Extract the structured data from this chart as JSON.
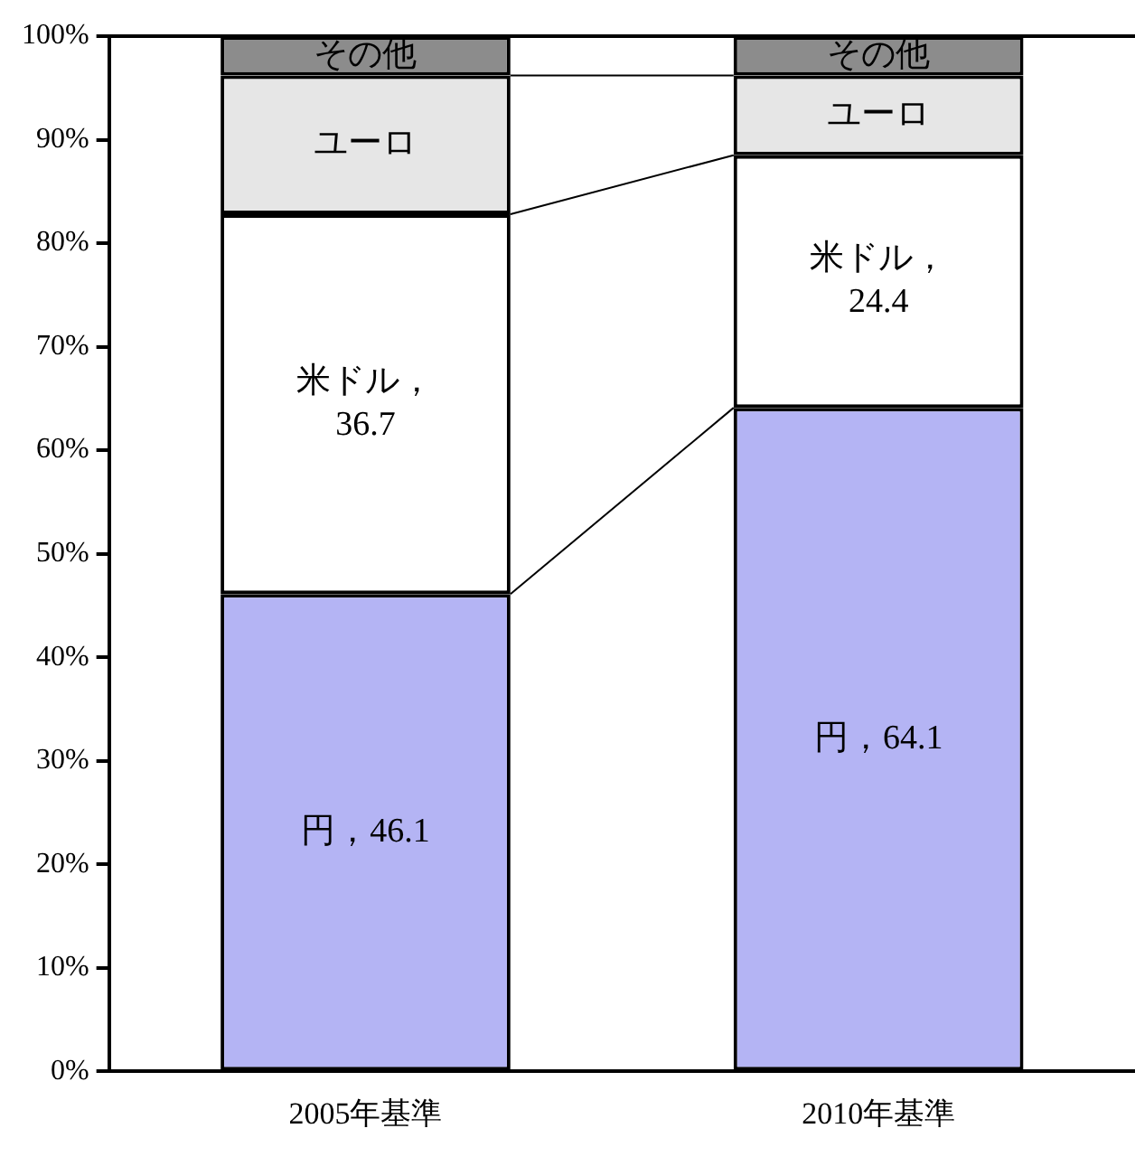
{
  "chart_data": {
    "type": "bar",
    "stacked": true,
    "categories": [
      "2005年基準",
      "2010年基準"
    ],
    "series": [
      {
        "name": "円，",
        "color": "#b4b4f4",
        "values": [
          46.1,
          64.1
        ],
        "value_labels": [
          "46.1",
          "64.1"
        ]
      },
      {
        "name": "米ドル，",
        "color": "#ffffff",
        "values": [
          36.7,
          24.4
        ],
        "value_labels": [
          "36.7",
          "24.4"
        ]
      },
      {
        "name": "ユーロ",
        "color": "#e6e6e6",
        "values": [
          13.4,
          7.7
        ]
      },
      {
        "name": "その他",
        "color": "#8c8c8c",
        "values": [
          3.8,
          3.8
        ]
      }
    ],
    "ylim": [
      0,
      100
    ],
    "yticks": [
      {
        "value": 0,
        "label": "0%"
      },
      {
        "value": 10,
        "label": "10%"
      },
      {
        "value": 20,
        "label": "20%"
      },
      {
        "value": 30,
        "label": "30%"
      },
      {
        "value": 40,
        "label": "40%"
      },
      {
        "value": 50,
        "label": "50%"
      },
      {
        "value": 60,
        "label": "60%"
      },
      {
        "value": 70,
        "label": "70%"
      },
      {
        "value": 80,
        "label": "80%"
      },
      {
        "value": 90,
        "label": "90%"
      },
      {
        "value": 100,
        "label": "100%"
      }
    ],
    "grid": false,
    "legend": false
  }
}
